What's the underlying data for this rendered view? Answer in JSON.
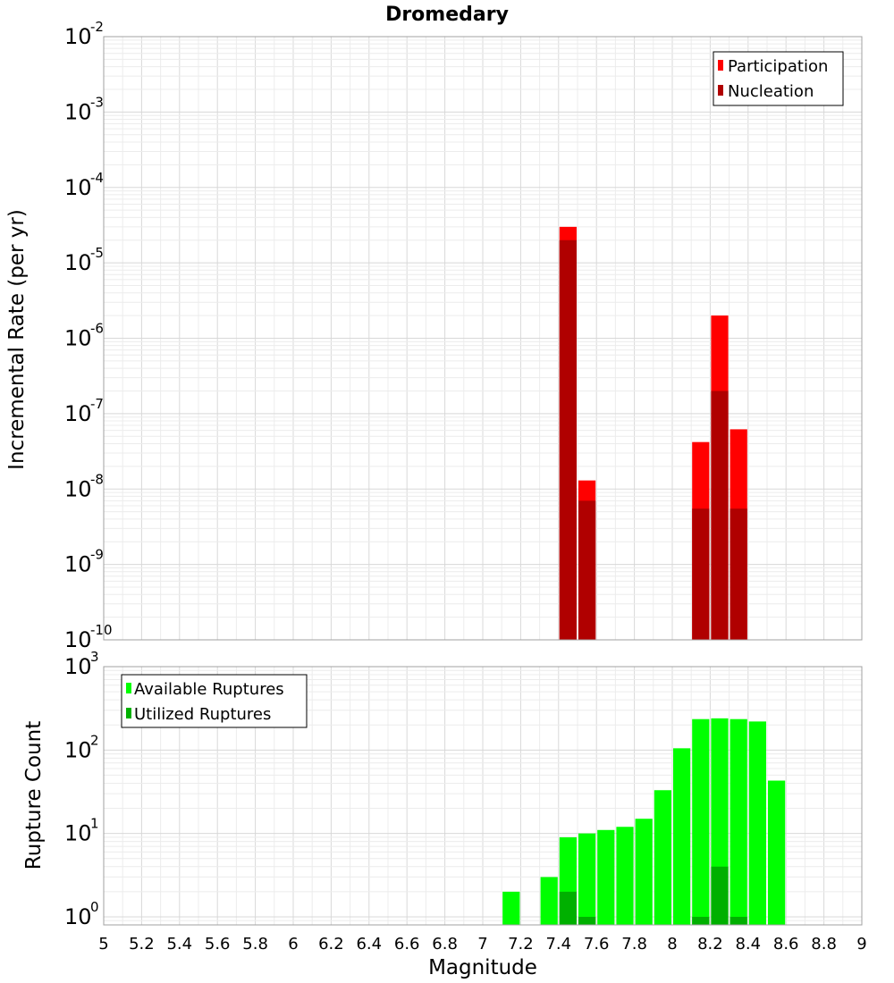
{
  "chart_data": [
    {
      "type": "bar",
      "title": "Dromedary",
      "xlabel": "",
      "ylabel": "Incremental Rate (per yr)",
      "yscale": "log",
      "ylim": [
        1e-10,
        0.01
      ],
      "xlim": [
        5,
        9
      ],
      "grid": true,
      "legend_position": "top-right",
      "series": [
        {
          "name": "Participation",
          "color": "#ff0000",
          "x": [
            7.45,
            7.55,
            8.15,
            8.25,
            8.35
          ],
          "values": [
            3e-05,
            1.3e-08,
            4.2e-08,
            2e-06,
            6.2e-08
          ]
        },
        {
          "name": "Nucleation",
          "color": "#b00000",
          "x": [
            7.45,
            7.55,
            8.15,
            8.25,
            8.35
          ],
          "values": [
            2e-05,
            7e-09,
            5.5e-09,
            2e-07,
            5.5e-09
          ]
        }
      ]
    },
    {
      "type": "bar",
      "title": "",
      "xlabel": "Magnitude",
      "ylabel": "Rupture Count",
      "yscale": "log",
      "ylim": [
        0.8,
        1000
      ],
      "xlim": [
        5,
        9
      ],
      "grid": true,
      "legend_position": "top-left",
      "series": [
        {
          "name": "Available Ruptures",
          "color": "#00ff00",
          "x": [
            7.15,
            7.35,
            7.45,
            7.55,
            7.65,
            7.75,
            7.85,
            7.95,
            8.05,
            8.15,
            8.25,
            8.35,
            8.45,
            8.55
          ],
          "values": [
            2,
            3,
            9,
            10,
            11,
            12,
            15,
            33,
            105,
            235,
            240,
            235,
            220,
            43
          ]
        },
        {
          "name": "Utilized Ruptures",
          "color": "#00b000",
          "x": [
            7.45,
            7.55,
            8.15,
            8.25,
            8.35
          ],
          "values": [
            2,
            1,
            1,
            4,
            1
          ]
        }
      ]
    }
  ],
  "x_ticks": [
    "5",
    "5.2",
    "5.4",
    "5.6",
    "5.8",
    "6",
    "6.2",
    "6.4",
    "6.6",
    "6.8",
    "7",
    "7.2",
    "7.4",
    "7.6",
    "7.8",
    "8",
    "8.2",
    "8.4",
    "8.6",
    "8.8",
    "9"
  ],
  "top_y_ticks": [
    {
      "base": "10",
      "exp": "-10"
    },
    {
      "base": "10",
      "exp": "-9"
    },
    {
      "base": "10",
      "exp": "-8"
    },
    {
      "base": "10",
      "exp": "-7"
    },
    {
      "base": "10",
      "exp": "-6"
    },
    {
      "base": "10",
      "exp": "-5"
    },
    {
      "base": "10",
      "exp": "-4"
    },
    {
      "base": "10",
      "exp": "-3"
    },
    {
      "base": "10",
      "exp": "-2"
    }
  ],
  "bottom_y_ticks": [
    {
      "base": "10",
      "exp": "0"
    },
    {
      "base": "10",
      "exp": "1"
    },
    {
      "base": "10",
      "exp": "2"
    },
    {
      "base": "10",
      "exp": "3"
    }
  ]
}
